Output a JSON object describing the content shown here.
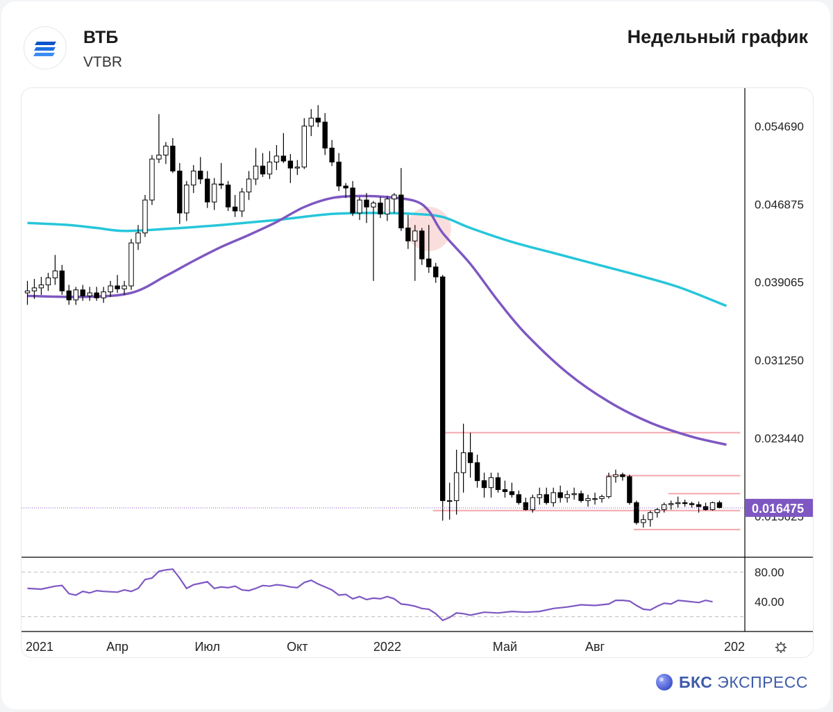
{
  "header": {
    "name": "ВТБ",
    "ticker": "VTBR",
    "title": "Недельный график"
  },
  "brand": {
    "bold": "БКС",
    "rest": "ЭКСПРЕСС"
  },
  "colors": {
    "ma_short": "#7e57c2",
    "ma_long": "#26c6da",
    "support_lines": "#f3a6ad",
    "last_price_badge": "#7e57c2",
    "rsi": "#7e57c2",
    "highlight": "#f0a0a0"
  },
  "icons": {
    "logo": "vtb-logo-icon",
    "settings": "gear-icon",
    "brand": "bks-logo-icon"
  },
  "chart_data": {
    "type": "candlestick",
    "interval": "weekly",
    "y_ticks": [
      "0.054690",
      "0.046875",
      "0.039065",
      "0.031250",
      "0.023440"
    ],
    "y_hidden_tick": "0.015625",
    "last_price": "0.016475",
    "ylim": [
      0.0116,
      0.0585
    ],
    "x_labels": [
      "2021",
      "Апр",
      "Июл",
      "Окт",
      "2022",
      "Май",
      "Авг",
      "202"
    ],
    "x_label_weeks": [
      0,
      13,
      26,
      39,
      52,
      69,
      82,
      100
    ],
    "candles": [
      [
        0.038,
        0.0392,
        0.0368,
        0.0382
      ],
      [
        0.0382,
        0.0394,
        0.0374,
        0.0385
      ],
      [
        0.0385,
        0.0396,
        0.0378,
        0.0388
      ],
      [
        0.0388,
        0.04,
        0.0382,
        0.0395
      ],
      [
        0.0395,
        0.0418,
        0.0388,
        0.0402
      ],
      [
        0.0402,
        0.0408,
        0.0378,
        0.0382
      ],
      [
        0.0382,
        0.0388,
        0.0368,
        0.0373
      ],
      [
        0.0373,
        0.0386,
        0.0368,
        0.0383
      ],
      [
        0.0383,
        0.0388,
        0.0372,
        0.0377
      ],
      [
        0.0377,
        0.0386,
        0.0372,
        0.038
      ],
      [
        0.038,
        0.0386,
        0.0372,
        0.0375
      ],
      [
        0.0375,
        0.0386,
        0.037,
        0.0381
      ],
      [
        0.0381,
        0.0392,
        0.0376,
        0.0387
      ],
      [
        0.0387,
        0.0398,
        0.038,
        0.0384
      ],
      [
        0.0384,
        0.0392,
        0.0378,
        0.0387
      ],
      [
        0.0387,
        0.0434,
        0.0383,
        0.043
      ],
      [
        0.043,
        0.0448,
        0.0423,
        0.044
      ],
      [
        0.044,
        0.0478,
        0.0436,
        0.0473
      ],
      [
        0.0473,
        0.0518,
        0.0468,
        0.0514
      ],
      [
        0.0514,
        0.0559,
        0.051,
        0.0518
      ],
      [
        0.0518,
        0.0531,
        0.0509,
        0.0527
      ],
      [
        0.0527,
        0.0535,
        0.05,
        0.0502
      ],
      [
        0.0502,
        0.051,
        0.0449,
        0.046
      ],
      [
        0.046,
        0.0492,
        0.0452,
        0.0488
      ],
      [
        0.0488,
        0.0508,
        0.048,
        0.0502
      ],
      [
        0.0502,
        0.0516,
        0.0489,
        0.0494
      ],
      [
        0.0494,
        0.0502,
        0.0465,
        0.0471
      ],
      [
        0.0471,
        0.0495,
        0.0463,
        0.0489
      ],
      [
        0.0489,
        0.051,
        0.0484,
        0.0488
      ],
      [
        0.0488,
        0.0492,
        0.0462,
        0.0466
      ],
      [
        0.0466,
        0.0478,
        0.0456,
        0.0462
      ],
      [
        0.0462,
        0.0485,
        0.0456,
        0.0481
      ],
      [
        0.0481,
        0.0502,
        0.0473,
        0.0494
      ],
      [
        0.0494,
        0.0525,
        0.0488,
        0.0507
      ],
      [
        0.0507,
        0.052,
        0.0496,
        0.0499
      ],
      [
        0.0499,
        0.0522,
        0.0494,
        0.0511
      ],
      [
        0.0511,
        0.0528,
        0.0503,
        0.0517
      ],
      [
        0.0517,
        0.054,
        0.051,
        0.0512
      ],
      [
        0.0512,
        0.0519,
        0.049,
        0.0505
      ],
      [
        0.0505,
        0.0513,
        0.0498,
        0.0506
      ],
      [
        0.0506,
        0.0555,
        0.0504,
        0.0547
      ],
      [
        0.0547,
        0.0564,
        0.0537,
        0.0555
      ],
      [
        0.0555,
        0.0568,
        0.0546,
        0.0551
      ],
      [
        0.0551,
        0.056,
        0.0518,
        0.0525
      ],
      [
        0.0525,
        0.0533,
        0.0507,
        0.0511
      ],
      [
        0.0511,
        0.052,
        0.0482,
        0.0487
      ],
      [
        0.0487,
        0.049,
        0.0475,
        0.0485
      ],
      [
        0.0485,
        0.0492,
        0.0457,
        0.046
      ],
      [
        0.046,
        0.0476,
        0.0453,
        0.0473
      ],
      [
        0.0473,
        0.048,
        0.045,
        0.0466
      ],
      [
        0.0466,
        0.0472,
        0.0392,
        0.047
      ],
      [
        0.047,
        0.0476,
        0.0455,
        0.0459
      ],
      [
        0.0459,
        0.0477,
        0.0452,
        0.0474
      ],
      [
        0.0474,
        0.048,
        0.046,
        0.0478
      ],
      [
        0.0478,
        0.0505,
        0.0442,
        0.0445
      ],
      [
        0.0445,
        0.0458,
        0.0424,
        0.0432
      ],
      [
        0.0432,
        0.0448,
        0.0392,
        0.0442
      ],
      [
        0.0442,
        0.0445,
        0.0408,
        0.0414
      ],
      [
        0.0414,
        0.0448,
        0.04,
        0.0406
      ],
      [
        0.0406,
        0.041,
        0.039,
        0.0396
      ],
      [
        0.0396,
        0.0398,
        0.0152,
        0.0172
      ],
      [
        0.0172,
        0.019,
        0.0153,
        0.0172
      ],
      [
        0.0172,
        0.0223,
        0.0158,
        0.02
      ],
      [
        0.02,
        0.0249,
        0.018,
        0.022
      ],
      [
        0.022,
        0.024,
        0.0195,
        0.021
      ],
      [
        0.021,
        0.0218,
        0.0185,
        0.0192
      ],
      [
        0.0192,
        0.02,
        0.0175,
        0.0185
      ],
      [
        0.0185,
        0.02,
        0.0175,
        0.0195
      ],
      [
        0.0195,
        0.02,
        0.018,
        0.0183
      ],
      [
        0.0183,
        0.0192,
        0.0175,
        0.0181
      ],
      [
        0.0181,
        0.019,
        0.0175,
        0.0178
      ],
      [
        0.0178,
        0.0182,
        0.0168,
        0.017
      ],
      [
        0.017,
        0.0175,
        0.0162,
        0.0163
      ],
      [
        0.0163,
        0.0178,
        0.016,
        0.0175
      ],
      [
        0.0175,
        0.0185,
        0.0168,
        0.0178
      ],
      [
        0.0178,
        0.0185,
        0.0168,
        0.017
      ],
      [
        0.017,
        0.0185,
        0.0166,
        0.018
      ],
      [
        0.018,
        0.0187,
        0.017,
        0.0175
      ],
      [
        0.0175,
        0.0182,
        0.017,
        0.0178
      ],
      [
        0.0178,
        0.0185,
        0.0173,
        0.0179
      ],
      [
        0.0179,
        0.0182,
        0.017,
        0.0172
      ],
      [
        0.0172,
        0.0178,
        0.0166,
        0.0174
      ],
      [
        0.0174,
        0.018,
        0.0168,
        0.0174
      ],
      [
        0.0174,
        0.0178,
        0.017,
        0.0176
      ],
      [
        0.0176,
        0.02,
        0.0174,
        0.0196
      ],
      [
        0.0196,
        0.0203,
        0.019,
        0.0198
      ],
      [
        0.0198,
        0.02,
        0.0192,
        0.0196
      ],
      [
        0.0196,
        0.0198,
        0.0168,
        0.017
      ],
      [
        0.017,
        0.0172,
        0.0148,
        0.015
      ],
      [
        0.015,
        0.0158,
        0.0145,
        0.0153
      ],
      [
        0.0153,
        0.0162,
        0.0146,
        0.016
      ],
      [
        0.016,
        0.0165,
        0.0155,
        0.0163
      ],
      [
        0.0163,
        0.017,
        0.016,
        0.0168
      ],
      [
        0.0168,
        0.0172,
        0.0163,
        0.0169
      ],
      [
        0.0169,
        0.0176,
        0.0165,
        0.017
      ],
      [
        0.017,
        0.0173,
        0.0166,
        0.0169
      ],
      [
        0.0169,
        0.0171,
        0.0165,
        0.0168
      ],
      [
        0.0168,
        0.0171,
        0.016,
        0.0166
      ],
      [
        0.0166,
        0.017,
        0.0162,
        0.0163
      ],
      [
        0.0163,
        0.0171,
        0.0162,
        0.017
      ],
      [
        0.017,
        0.0172,
        0.0164,
        0.0165
      ]
    ],
    "ma_short": [
      [
        0,
        0.0377
      ],
      [
        8,
        0.0376
      ],
      [
        15,
        0.038
      ],
      [
        20,
        0.0397
      ],
      [
        24,
        0.0412
      ],
      [
        28,
        0.0426
      ],
      [
        32,
        0.0438
      ],
      [
        36,
        0.0451
      ],
      [
        40,
        0.0466
      ],
      [
        44,
        0.0475
      ],
      [
        48,
        0.0477
      ],
      [
        52,
        0.0476
      ],
      [
        56,
        0.0472
      ],
      [
        58,
        0.0462
      ],
      [
        60,
        0.044
      ],
      [
        64,
        0.0409
      ],
      [
        68,
        0.0372
      ],
      [
        72,
        0.0339
      ],
      [
        78,
        0.03
      ],
      [
        84,
        0.0271
      ],
      [
        90,
        0.025
      ],
      [
        96,
        0.0236
      ],
      [
        101,
        0.0228
      ]
    ],
    "ma_long": [
      [
        0,
        0.045
      ],
      [
        6,
        0.0448
      ],
      [
        10,
        0.0445
      ],
      [
        14,
        0.0442
      ],
      [
        20,
        0.0444
      ],
      [
        28,
        0.0448
      ],
      [
        36,
        0.0453
      ],
      [
        44,
        0.0459
      ],
      [
        50,
        0.046
      ],
      [
        56,
        0.0459
      ],
      [
        60,
        0.0456
      ],
      [
        64,
        0.0445
      ],
      [
        70,
        0.0431
      ],
      [
        76,
        0.042
      ],
      [
        82,
        0.0409
      ],
      [
        88,
        0.0398
      ],
      [
        94,
        0.0386
      ],
      [
        101,
        0.0367
      ]
    ],
    "levels": [
      {
        "value": 0.024,
        "from_week": 60,
        "to_week": 103
      },
      {
        "value": 0.0197,
        "from_week": 84,
        "to_week": 103
      },
      {
        "value": 0.0179,
        "from_week": 93,
        "to_week": 103
      },
      {
        "value": 0.0162,
        "from_week": 59,
        "to_week": 103
      },
      {
        "value": 0.0143,
        "from_week": 88,
        "to_week": 103
      }
    ],
    "rsi": {
      "ticks": [
        "80.00",
        "40.00"
      ],
      "guides": [
        80,
        20
      ],
      "ylim": [
        0,
        100
      ],
      "values": [
        [
          0,
          58
        ],
        [
          2,
          57
        ],
        [
          4,
          61
        ],
        [
          5,
          62
        ],
        [
          6,
          51
        ],
        [
          7,
          49
        ],
        [
          8,
          54
        ],
        [
          9,
          52
        ],
        [
          10,
          55
        ],
        [
          11,
          54
        ],
        [
          13,
          53
        ],
        [
          14,
          56
        ],
        [
          15,
          54
        ],
        [
          16,
          58
        ],
        [
          17,
          70
        ],
        [
          18,
          72
        ],
        [
          19,
          81
        ],
        [
          20,
          83
        ],
        [
          21,
          84
        ],
        [
          22,
          72
        ],
        [
          23,
          58
        ],
        [
          24,
          63
        ],
        [
          25,
          65
        ],
        [
          26,
          67
        ],
        [
          27,
          58
        ],
        [
          28,
          60
        ],
        [
          29,
          59
        ],
        [
          30,
          61
        ],
        [
          31,
          56
        ],
        [
          32,
          55
        ],
        [
          33,
          58
        ],
        [
          34,
          62
        ],
        [
          35,
          61
        ],
        [
          36,
          63
        ],
        [
          37,
          62
        ],
        [
          38,
          60
        ],
        [
          39,
          59
        ],
        [
          40,
          66
        ],
        [
          41,
          69
        ],
        [
          42,
          64
        ],
        [
          43,
          60
        ],
        [
          44,
          56
        ],
        [
          45,
          49
        ],
        [
          46,
          50
        ],
        [
          47,
          44
        ],
        [
          48,
          47
        ],
        [
          49,
          43
        ],
        [
          50,
          45
        ],
        [
          51,
          44
        ],
        [
          52,
          47
        ],
        [
          53,
          44
        ],
        [
          54,
          37
        ],
        [
          55,
          36
        ],
        [
          56,
          34
        ],
        [
          57,
          31
        ],
        [
          58,
          30
        ],
        [
          59,
          24
        ],
        [
          60,
          15
        ],
        [
          61,
          19
        ],
        [
          62,
          25
        ],
        [
          63,
          24
        ],
        [
          64,
          22
        ],
        [
          66,
          26
        ],
        [
          68,
          25
        ],
        [
          70,
          27
        ],
        [
          72,
          26
        ],
        [
          74,
          27
        ],
        [
          76,
          31
        ],
        [
          78,
          33
        ],
        [
          80,
          36
        ],
        [
          82,
          35
        ],
        [
          84,
          37
        ],
        [
          85,
          42
        ],
        [
          86,
          42
        ],
        [
          87,
          41
        ],
        [
          88,
          35
        ],
        [
          89,
          30
        ],
        [
          90,
          29
        ],
        [
          91,
          34
        ],
        [
          92,
          38
        ],
        [
          93,
          37
        ],
        [
          94,
          42
        ],
        [
          95,
          41
        ],
        [
          96,
          40
        ],
        [
          97,
          39
        ],
        [
          98,
          42
        ],
        [
          99,
          40
        ]
      ]
    }
  }
}
